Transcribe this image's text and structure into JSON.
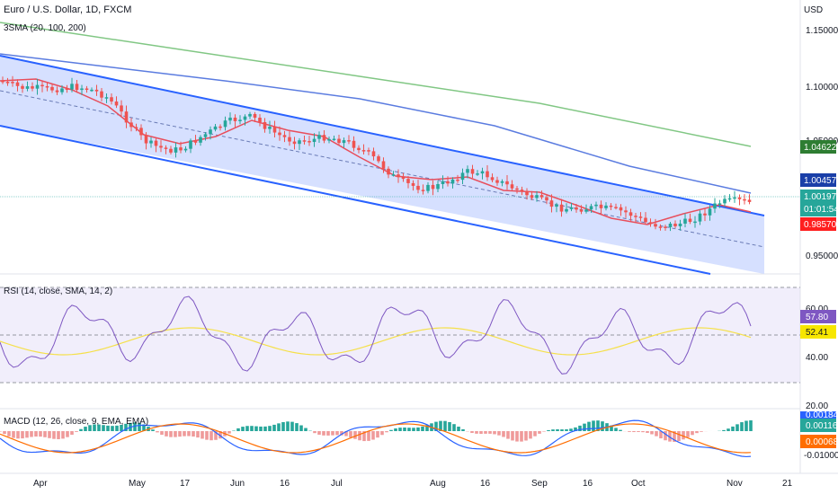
{
  "chart_data": {
    "type": "candlestick",
    "title": "Euro / U.S. Dollar, 1D, FXCM",
    "currency": "USD",
    "x_ticks": [
      "Apr",
      "May",
      "17",
      "Jun",
      "16",
      "Jul",
      "Aug",
      "16",
      "Sep",
      "16",
      "Oct",
      "Nov",
      "21"
    ],
    "main_pane": {
      "indicator_label": "3SMA (20, 100, 200)",
      "ylim": [
        0.93,
        1.16
      ],
      "y_ticks": [
        "1.15000",
        "1.10000",
        "1.05000",
        "0.95000"
      ],
      "price_badges": [
        {
          "value": "1.04622",
          "color": "#2e7d32"
        },
        {
          "value": "1.00457",
          "color": "#1a3fa8"
        },
        {
          "value": "1.00197",
          "color": "#26a69a"
        },
        {
          "value": "01:01:54",
          "color": "#26a69a"
        },
        {
          "value": "0.98570",
          "color": "#ff1f1f"
        }
      ],
      "sma_200_color": "#81c784",
      "sma_100_color": "#5b7ce0",
      "sma_20_color": "#e84e5c",
      "channel_color": "#2962ff",
      "channel_fill": "#d6e0ff",
      "up_color": "#26a69a",
      "down_color": "#ef5350"
    },
    "rsi_pane": {
      "label": "RSI (14, close, SMA, 14, 2)",
      "ylim": [
        15,
        85
      ],
      "y_ticks": [
        "60.00",
        "40.00",
        "20.00"
      ],
      "badges": [
        {
          "value": "57.80",
          "color": "#7e57c2"
        },
        {
          "value": "52.41",
          "color": "#f7e600"
        }
      ],
      "rsi_color": "#7e57c2",
      "ma_color": "#f5e04a"
    },
    "macd_pane": {
      "label": "MACD (12, 26, close, 9, EMA, EMA)",
      "y_ticks": [
        "-0.01000"
      ],
      "badges": [
        {
          "value": "0.00184",
          "color": "#2962ff"
        },
        {
          "value": "0.00116",
          "color": "#26a69a"
        },
        {
          "value": "0.00068",
          "color": "#ff6d00"
        }
      ],
      "macd_color": "#2962ff",
      "signal_color": "#ff6d00"
    }
  }
}
